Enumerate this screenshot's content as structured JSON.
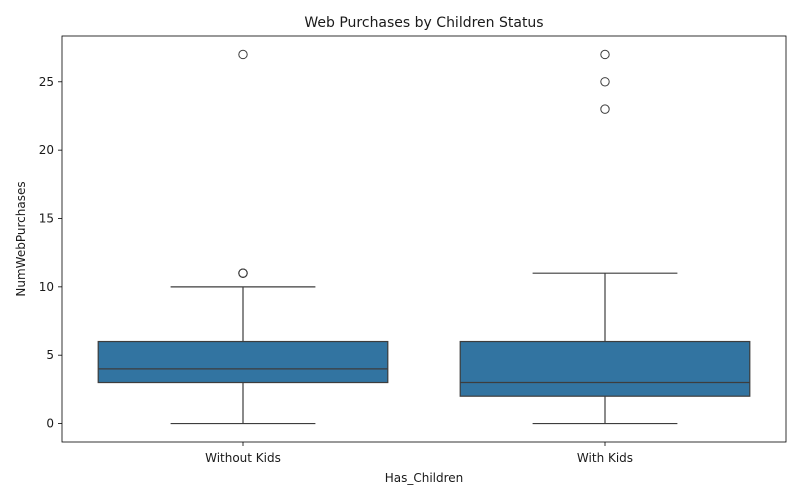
{
  "chart_data": {
    "type": "box",
    "title": "Web Purchases by Children Status",
    "xlabel": "Has_Children",
    "ylabel": "NumWebPurchases",
    "ylim": [
      -1.35,
      28.35
    ],
    "yticks": [
      0,
      5,
      10,
      15,
      20,
      25
    ],
    "grid": false,
    "categories": [
      "Without Kids",
      "With Kids"
    ],
    "boxes": [
      {
        "category": "Without Kids",
        "whisker_low": 0,
        "q1": 3,
        "median": 4,
        "q3": 6,
        "whisker_high": 10,
        "outliers": [
          11,
          11,
          11,
          27
        ]
      },
      {
        "category": "With Kids",
        "whisker_low": 0,
        "q1": 2,
        "median": 3,
        "q3": 6,
        "whisker_high": 11,
        "outliers": [
          23,
          25,
          27
        ]
      }
    ],
    "colors": {
      "box_fill": "#3274a1",
      "line": "#3d3d3d",
      "axis": "#000000"
    }
  }
}
